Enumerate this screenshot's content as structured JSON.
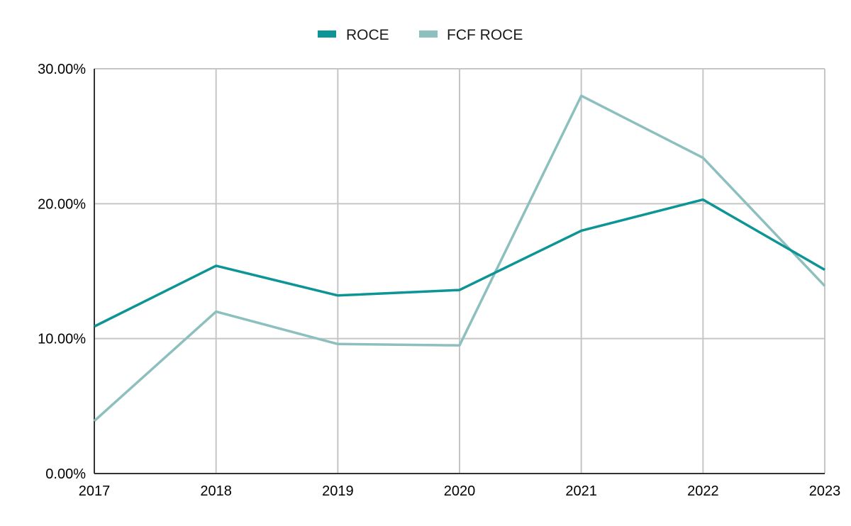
{
  "chart_data": {
    "type": "line",
    "x": [
      "2017",
      "2018",
      "2019",
      "2020",
      "2021",
      "2022",
      "2023"
    ],
    "series": [
      {
        "name": "ROCE",
        "color": "#0d9494",
        "values": [
          10.9,
          15.4,
          13.2,
          13.6,
          18.0,
          20.3,
          15.1
        ]
      },
      {
        "name": "FCF ROCE",
        "color": "#8dbfbf",
        "values": [
          3.9,
          12.0,
          9.6,
          9.5,
          28.0,
          23.4,
          13.9
        ]
      }
    ],
    "ylim": [
      0,
      30
    ],
    "yticks": [
      {
        "value": 0,
        "label": "0.00%"
      },
      {
        "value": 10,
        "label": "10.00%"
      },
      {
        "value": 20,
        "label": "20.00%"
      },
      {
        "value": 30,
        "label": "30.00%"
      }
    ],
    "xlabel": "",
    "ylabel": "",
    "title": "",
    "grid": true,
    "legend_position": "top-center"
  }
}
